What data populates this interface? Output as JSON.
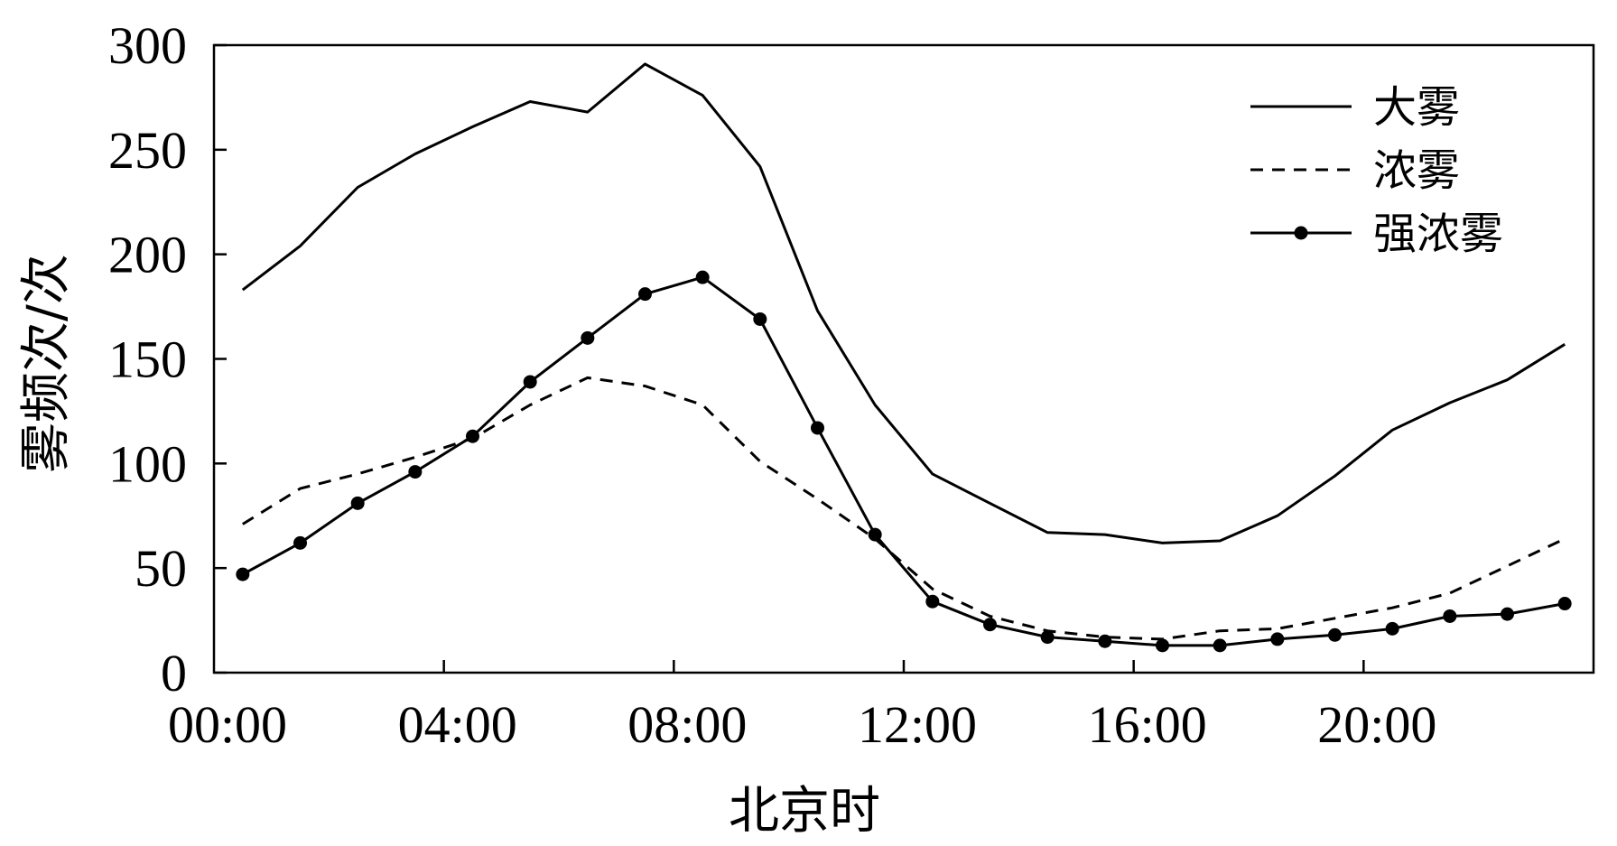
{
  "chart_data": {
    "type": "line",
    "xlabel": "北京时",
    "ylabel": "雾频次/次",
    "ylim": [
      0,
      300
    ],
    "xlim": [
      0,
      24
    ],
    "x_ticks": [
      "00:00",
      "04:00",
      "08:00",
      "12:00",
      "16:00",
      "20:00"
    ],
    "y_ticks": [
      0,
      50,
      100,
      150,
      200,
      250,
      300
    ],
    "grid": false,
    "legend_position": "top-right",
    "x": [
      0.5,
      1.5,
      2.5,
      3.5,
      4.5,
      5.5,
      6.5,
      7.5,
      8.5,
      9.5,
      10.5,
      11.5,
      12.5,
      13.5,
      14.5,
      15.5,
      16.5,
      17.5,
      18.5,
      19.5,
      20.5,
      21.5,
      22.5,
      23.5
    ],
    "series": [
      {
        "name": "大雾",
        "style": "solid",
        "color": "#000000",
        "values": [
          183,
          204,
          232,
          248,
          261,
          273,
          268,
          291,
          276,
          242,
          173,
          128,
          95,
          81,
          67,
          66,
          62,
          63,
          75,
          94,
          116,
          129,
          140,
          157
        ]
      },
      {
        "name": "浓雾",
        "style": "dashed",
        "color": "#000000",
        "values": [
          71,
          88,
          95,
          103,
          112,
          128,
          141,
          137,
          128,
          101,
          83,
          64,
          40,
          27,
          20,
          17,
          16,
          20,
          21,
          26,
          31,
          38,
          51,
          64
        ]
      },
      {
        "name": "强浓雾",
        "style": "solid-markers",
        "color": "#000000",
        "values": [
          47,
          62,
          81,
          96,
          113,
          139,
          160,
          181,
          189,
          169,
          117,
          66,
          34,
          23,
          17,
          15,
          13,
          13,
          16,
          18,
          21,
          27,
          28,
          33
        ]
      }
    ]
  }
}
